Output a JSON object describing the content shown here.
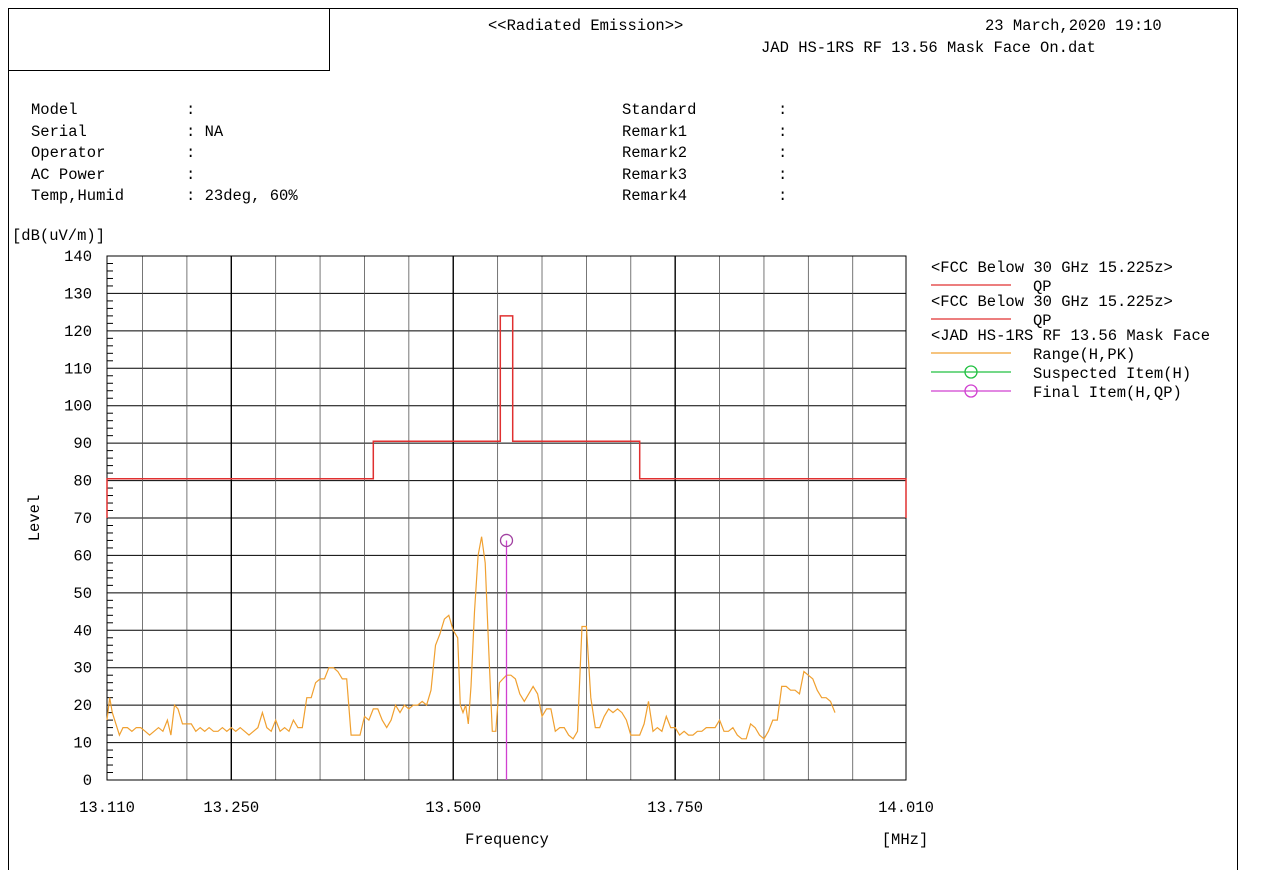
{
  "header": {
    "title": "<<Radiated Emission>>",
    "datetime": "23 March,2020 19:10",
    "filename": "JAD HS-1RS RF 13.56 Mask Face On.dat"
  },
  "info_left": [
    {
      "label": "Model",
      "value": ":"
    },
    {
      "label": "Serial",
      "value": ": NA"
    },
    {
      "label": "Operator",
      "value": ":"
    },
    {
      "label": "AC Power",
      "value": ":"
    },
    {
      "label": "Temp,Humid",
      "value": ": 23deg, 60%"
    }
  ],
  "info_right": [
    {
      "label": "Standard",
      "value": ":"
    },
    {
      "label": "Remark1",
      "value": ":"
    },
    {
      "label": "Remark2",
      "value": ":"
    },
    {
      "label": "Remark3",
      "value": ":"
    },
    {
      "label": "Remark4",
      "value": ":"
    }
  ],
  "chart_data": {
    "type": "line",
    "unit_label": "[dB(uV/m)]",
    "ylabel": "Level",
    "xlabel": "Frequency",
    "xunit": "[MHz]",
    "xlim": [
      13.11,
      14.01
    ],
    "ylim": [
      0,
      140
    ],
    "x_tick_labels": [
      {
        "value": 13.11,
        "label": "13.110"
      },
      {
        "value": 13.25,
        "label": "13.250"
      },
      {
        "value": 13.5,
        "label": "13.500"
      },
      {
        "value": 13.75,
        "label": "13.750"
      },
      {
        "value": 14.01,
        "label": "14.010"
      }
    ],
    "y_ticks": [
      0,
      10,
      20,
      30,
      40,
      50,
      60,
      70,
      80,
      90,
      100,
      110,
      120,
      130,
      140
    ],
    "grid": true,
    "legend_position": "right",
    "colors": {
      "limit": "#e03030",
      "range": "#f0a030",
      "suspected": "#20c040",
      "final": "#d040d0",
      "marker": "#a040a0"
    },
    "legend": [
      {
        "type": "header",
        "text": "<FCC Below 30 GHz 15.225z>"
      },
      {
        "type": "entry",
        "name": "QP",
        "color": "#e03030",
        "marker": "none"
      },
      {
        "type": "header",
        "text": "<FCC Below 30 GHz 15.225z>"
      },
      {
        "type": "entry",
        "name": "QP",
        "color": "#e03030",
        "marker": "none"
      },
      {
        "type": "header",
        "text": "<JAD HS-1RS RF 13.56 Mask Face"
      },
      {
        "type": "entry",
        "name": "Range(H,PK)",
        "color": "#f0a030",
        "marker": "none"
      },
      {
        "type": "entry",
        "name": "Suspected Item(H)",
        "color": "#20c040",
        "marker": "circle"
      },
      {
        "type": "entry",
        "name": "Final Item(H,QP)",
        "color": "#d040d0",
        "marker": "circle"
      }
    ],
    "limit_line": [
      [
        13.11,
        70
      ],
      [
        13.11,
        80.5
      ],
      [
        13.41,
        80.5
      ],
      [
        13.41,
        90.5
      ],
      [
        13.553,
        90.5
      ],
      [
        13.553,
        124
      ],
      [
        13.567,
        124
      ],
      [
        13.567,
        90.5
      ],
      [
        13.71,
        90.5
      ],
      [
        13.71,
        80.5
      ],
      [
        14.01,
        80.5
      ],
      [
        14.01,
        70
      ]
    ],
    "range_trace": [
      [
        13.11,
        16
      ],
      [
        13.113,
        22
      ],
      [
        13.116,
        18
      ],
      [
        13.12,
        15
      ],
      [
        13.124,
        12
      ],
      [
        13.128,
        14
      ],
      [
        13.133,
        14
      ],
      [
        13.138,
        13
      ],
      [
        13.143,
        14
      ],
      [
        13.148,
        14
      ],
      [
        13.153,
        13
      ],
      [
        13.158,
        12
      ],
      [
        13.163,
        13
      ],
      [
        13.168,
        14
      ],
      [
        13.173,
        13
      ],
      [
        13.178,
        16
      ],
      [
        13.182,
        12
      ],
      [
        13.186,
        20
      ],
      [
        13.19,
        19
      ],
      [
        13.195,
        15
      ],
      [
        13.2,
        15
      ],
      [
        13.205,
        15
      ],
      [
        13.21,
        13
      ],
      [
        13.215,
        14
      ],
      [
        13.22,
        13
      ],
      [
        13.225,
        14
      ],
      [
        13.23,
        13
      ],
      [
        13.235,
        13
      ],
      [
        13.24,
        14
      ],
      [
        13.245,
        13
      ],
      [
        13.25,
        14
      ],
      [
        13.255,
        13
      ],
      [
        13.26,
        14
      ],
      [
        13.265,
        13
      ],
      [
        13.27,
        12
      ],
      [
        13.275,
        13
      ],
      [
        13.28,
        14
      ],
      [
        13.285,
        18
      ],
      [
        13.29,
        14
      ],
      [
        13.295,
        13
      ],
      [
        13.3,
        16
      ],
      [
        13.305,
        13
      ],
      [
        13.31,
        14
      ],
      [
        13.315,
        13
      ],
      [
        13.32,
        16
      ],
      [
        13.325,
        14
      ],
      [
        13.33,
        14
      ],
      [
        13.335,
        22
      ],
      [
        13.34,
        22
      ],
      [
        13.345,
        26
      ],
      [
        13.35,
        27
      ],
      [
        13.355,
        27
      ],
      [
        13.36,
        30
      ],
      [
        13.365,
        30
      ],
      [
        13.37,
        29
      ],
      [
        13.375,
        27
      ],
      [
        13.38,
        27
      ],
      [
        13.385,
        12
      ],
      [
        13.39,
        12
      ],
      [
        13.395,
        12
      ],
      [
        13.4,
        17
      ],
      [
        13.405,
        16
      ],
      [
        13.41,
        19
      ],
      [
        13.415,
        19
      ],
      [
        13.42,
        16
      ],
      [
        13.425,
        14
      ],
      [
        13.43,
        16
      ],
      [
        13.435,
        20
      ],
      [
        13.44,
        18
      ],
      [
        13.445,
        20
      ],
      [
        13.45,
        19
      ],
      [
        13.455,
        20
      ],
      [
        13.46,
        20
      ],
      [
        13.465,
        21
      ],
      [
        13.47,
        20
      ],
      [
        13.475,
        24
      ],
      [
        13.48,
        36
      ],
      [
        13.485,
        39
      ],
      [
        13.49,
        43
      ],
      [
        13.495,
        44
      ],
      [
        13.5,
        40
      ],
      [
        13.505,
        38
      ],
      [
        13.508,
        20
      ],
      [
        13.511,
        18
      ],
      [
        13.514,
        20
      ],
      [
        13.517,
        15
      ],
      [
        13.52,
        25
      ],
      [
        13.524,
        45
      ],
      [
        13.528,
        60
      ],
      [
        13.532,
        65
      ],
      [
        13.536,
        58
      ],
      [
        13.54,
        35
      ],
      [
        13.544,
        13
      ],
      [
        13.548,
        13
      ],
      [
        13.552,
        26
      ],
      [
        13.556,
        27
      ],
      [
        13.56,
        28
      ],
      [
        13.565,
        28
      ],
      [
        13.57,
        27
      ],
      [
        13.575,
        23
      ],
      [
        13.58,
        21
      ],
      [
        13.585,
        23
      ],
      [
        13.59,
        25
      ],
      [
        13.595,
        23
      ],
      [
        13.6,
        17
      ],
      [
        13.605,
        19
      ],
      [
        13.61,
        19
      ],
      [
        13.615,
        13
      ],
      [
        13.62,
        14
      ],
      [
        13.625,
        14
      ],
      [
        13.63,
        12
      ],
      [
        13.635,
        11
      ],
      [
        13.64,
        13
      ],
      [
        13.645,
        41
      ],
      [
        13.65,
        41
      ],
      [
        13.655,
        22
      ],
      [
        13.66,
        14
      ],
      [
        13.665,
        14
      ],
      [
        13.67,
        17
      ],
      [
        13.675,
        19
      ],
      [
        13.68,
        18
      ],
      [
        13.685,
        19
      ],
      [
        13.69,
        18
      ],
      [
        13.695,
        16
      ],
      [
        13.7,
        12
      ],
      [
        13.705,
        12
      ],
      [
        13.71,
        12
      ],
      [
        13.715,
        15
      ],
      [
        13.72,
        21
      ],
      [
        13.725,
        13
      ],
      [
        13.73,
        14
      ],
      [
        13.735,
        13
      ],
      [
        13.74,
        17
      ],
      [
        13.745,
        14
      ],
      [
        13.75,
        14
      ],
      [
        13.755,
        12
      ],
      [
        13.76,
        13
      ],
      [
        13.765,
        12
      ],
      [
        13.77,
        12
      ],
      [
        13.775,
        13
      ],
      [
        13.78,
        13
      ],
      [
        13.785,
        14
      ],
      [
        13.79,
        14
      ],
      [
        13.795,
        14
      ],
      [
        13.8,
        16
      ],
      [
        13.805,
        13
      ],
      [
        13.81,
        13
      ],
      [
        13.815,
        14
      ],
      [
        13.82,
        12
      ],
      [
        13.825,
        11
      ],
      [
        13.83,
        11
      ],
      [
        13.835,
        15
      ],
      [
        13.84,
        14
      ],
      [
        13.845,
        12
      ],
      [
        13.85,
        11
      ],
      [
        13.855,
        13
      ],
      [
        13.86,
        16
      ],
      [
        13.865,
        16
      ],
      [
        13.87,
        25
      ],
      [
        13.875,
        25
      ],
      [
        13.88,
        24
      ],
      [
        13.885,
        24
      ],
      [
        13.89,
        23
      ],
      [
        13.895,
        29
      ],
      [
        13.9,
        28
      ],
      [
        13.905,
        27
      ],
      [
        13.91,
        24
      ],
      [
        13.915,
        22
      ],
      [
        13.92,
        22
      ],
      [
        13.925,
        21
      ],
      [
        13.93,
        18
      ]
    ],
    "final_items": [
      {
        "freq": 13.56,
        "level": 64
      }
    ]
  }
}
